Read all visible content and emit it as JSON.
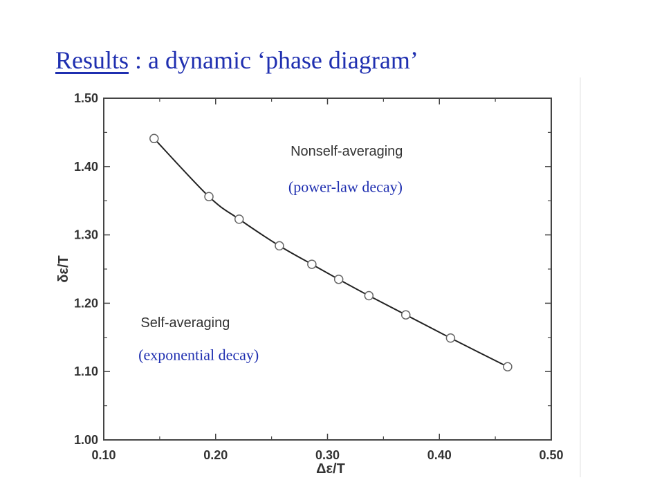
{
  "slide": {
    "title_link": "Results",
    "title_rest": " : a dynamic ‘phase diagram’",
    "title_color": "#1f2fb0"
  },
  "chart_data": {
    "type": "line",
    "xlabel": "Δε/T",
    "ylabel": "δε/T",
    "xlim": [
      0.1,
      0.5
    ],
    "ylim": [
      1.0,
      1.5
    ],
    "xticks": [
      "0.10",
      "0.20",
      "0.30",
      "0.40",
      "0.50"
    ],
    "yticks": [
      "1.00",
      "1.10",
      "1.20",
      "1.30",
      "1.40",
      "1.50"
    ],
    "grid": false,
    "marker": "open-circle",
    "series": [
      {
        "x": [
          0.145,
          0.194,
          0.221,
          0.257,
          0.286,
          0.31,
          0.337,
          0.37,
          0.41,
          0.461
        ],
        "y": [
          1.441,
          1.356,
          1.323,
          1.284,
          1.257,
          1.235,
          1.211,
          1.183,
          1.149,
          1.107
        ]
      }
    ],
    "annotations": [
      {
        "text": "Nonself-averaging",
        "x": 0.267,
        "y": 1.416,
        "style": "sans",
        "color": "#333333"
      },
      {
        "text": "(power-law decay)",
        "x": 0.265,
        "y": 1.363,
        "style": "serif",
        "color": "#1f2fb0"
      },
      {
        "text": "Self-averaging",
        "x": 0.133,
        "y": 1.165,
        "style": "sans",
        "color": "#333333"
      },
      {
        "text": "(exponential decay)",
        "x": 0.131,
        "y": 1.117,
        "style": "serif",
        "color": "#1f2fb0"
      }
    ]
  }
}
